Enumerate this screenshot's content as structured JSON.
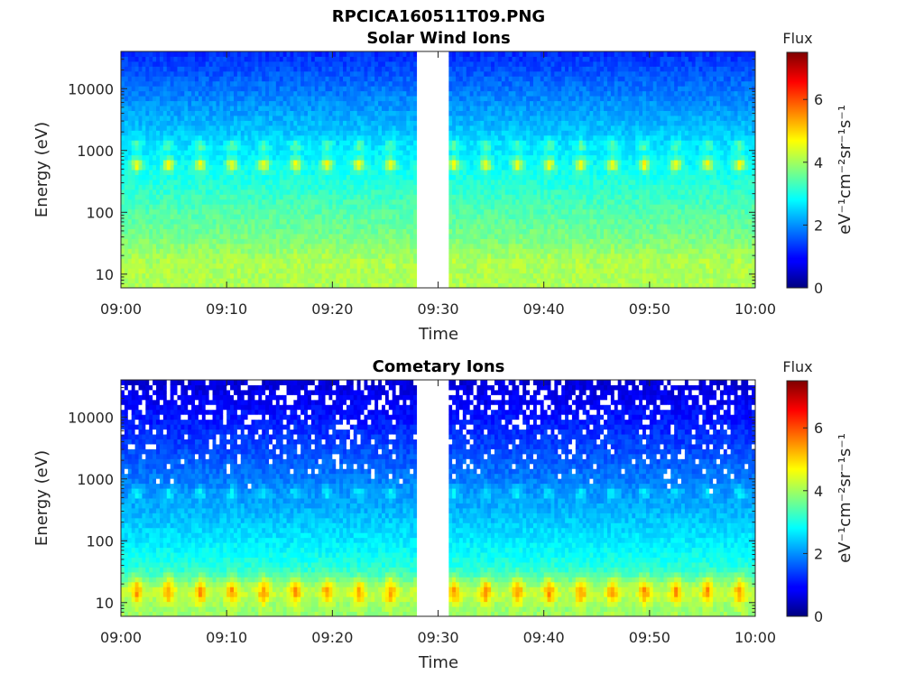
{
  "figure": {
    "title": "RPCICA160511T09.PNG"
  },
  "colorbar": {
    "title": "Flux",
    "label": "eV⁻¹cm⁻²sr⁻¹s⁻¹",
    "range": [
      0,
      7.5
    ],
    "ticks": [
      "0",
      "2",
      "4",
      "6"
    ],
    "colormap": "jet"
  },
  "chart_data": [
    {
      "type": "heatmap",
      "title": "Solar Wind Ions",
      "xlabel": "Time",
      "ylabel": "Energy (eV)",
      "x_range": [
        "09:00",
        "10:00"
      ],
      "x_ticks": [
        "09:00",
        "09:10",
        "09:20",
        "09:30",
        "09:40",
        "09:50",
        "10:00"
      ],
      "y_scale": "log",
      "y_range": [
        6,
        40000
      ],
      "y_ticks": [
        "10",
        "100",
        "1000",
        "10000"
      ],
      "data_gap": [
        "09:28",
        "09:31"
      ],
      "bands": [
        {
          "energy_eV": 600,
          "peak_flux": 4.8,
          "period_min": 3
        },
        {
          "energy_eV": 1200,
          "peak_flux": 3.5,
          "period_min": 3
        },
        {
          "energy_eV": 15,
          "peak_flux": 4.2,
          "period_min": 3
        }
      ]
    },
    {
      "type": "heatmap",
      "title": "Cometary Ions",
      "xlabel": "Time",
      "ylabel": "Energy (eV)",
      "x_range": [
        "09:00",
        "10:00"
      ],
      "x_ticks": [
        "09:00",
        "09:10",
        "09:20",
        "09:30",
        "09:40",
        "09:50",
        "10:00"
      ],
      "y_scale": "log",
      "y_range": [
        6,
        40000
      ],
      "y_ticks": [
        "10",
        "100",
        "1000",
        "10000"
      ],
      "data_gap": [
        "09:28",
        "09:31"
      ],
      "bands": [
        {
          "energy_eV": 15,
          "peak_flux": 5.5,
          "period_min": 3
        },
        {
          "energy_eV": 600,
          "peak_flux": 2.8,
          "period_min": 3
        }
      ]
    }
  ]
}
